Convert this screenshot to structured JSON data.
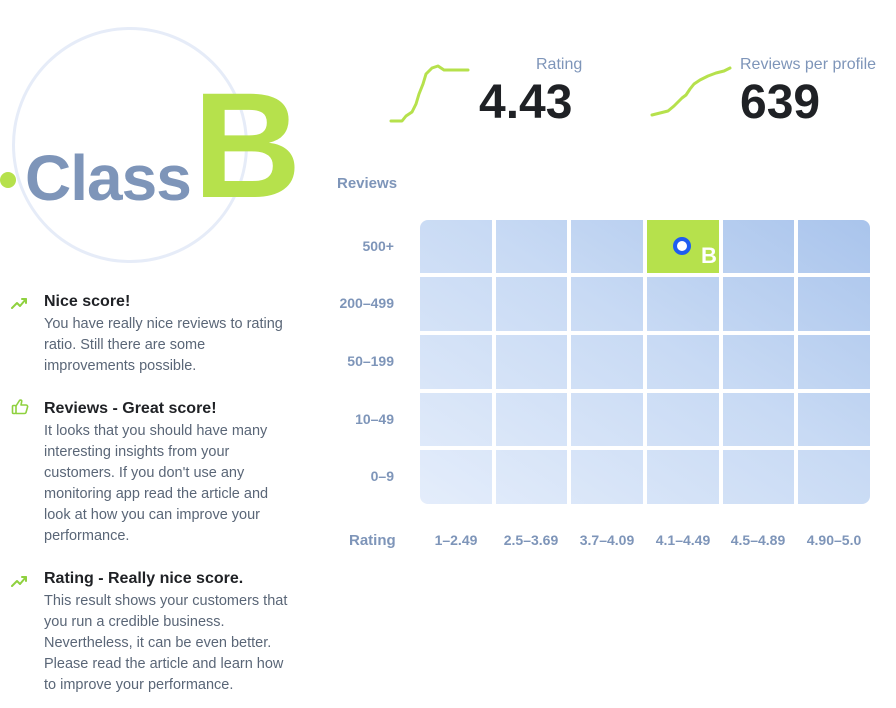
{
  "grade": {
    "word": "Class",
    "letter": "B",
    "accent": "#b6e14c",
    "muted": "#7e95b9"
  },
  "metrics": [
    {
      "label": "Rating",
      "value": "4.43",
      "sparkline": "trend-up"
    },
    {
      "label": "Reviews per profile",
      "value": "639",
      "sparkline": "trend-up"
    }
  ],
  "feedback": [
    {
      "icon": "trend-up-icon",
      "title": "Nice score!",
      "text": "You have really nice reviews to rating ratio. Still there are some improvements possible."
    },
    {
      "icon": "thumbs-up-icon",
      "title": "Reviews - Great score!",
      "text": "It looks that you should have many interesting insights from your customers. If you don't use any monitoring app read the article and look at how you can improve your performance."
    },
    {
      "icon": "trend-up-icon",
      "title": "Rating - Really nice score.",
      "text": "This result shows your customers that you run a credible business. Nevertheless, it can be even better. Please read the article and learn how to improve your performance."
    }
  ],
  "matrix": {
    "y_title": "Reviews",
    "x_title": "Rating",
    "rows": [
      "500+",
      "200–499",
      "50–199",
      "10–49",
      "0–9"
    ],
    "cols": [
      "1–2.49",
      "2.5–3.69",
      "3.7–4.09",
      "4.1–4.49",
      "4.5–4.89",
      "4.90–5.0"
    ],
    "selected": {
      "row": "500+",
      "col": "4.1–4.49",
      "grade": "B"
    },
    "marker_color": "#1f5cf0"
  }
}
